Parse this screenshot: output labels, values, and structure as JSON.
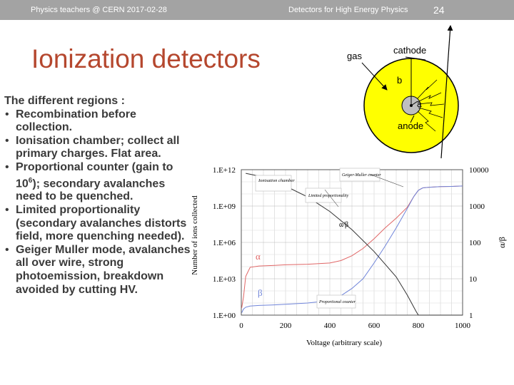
{
  "header": {
    "left": "Physics teachers @ CERN 2017-02-28",
    "center": "Detectors for High Energy Physics",
    "page_number": "24"
  },
  "title": "Ionization detectors",
  "body": {
    "intro": "The different regions :",
    "bullets": [
      {
        "pre": "Recombination before collection.",
        "sup": "",
        "post": ""
      },
      {
        "pre": "Ionisation chamber; collect all primary charges. Flat area.",
        "sup": "",
        "post": ""
      },
      {
        "pre": "Proportional counter (gain to 10",
        "sup": "6",
        "post": "); secondary avalanches need to be quenched."
      },
      {
        "pre": "Limited proportionality (secondary avalanches distorts field, more quenching needed).",
        "sup": "",
        "post": ""
      },
      {
        "pre": "Geiger Muller mode, avalanches all over wire, strong photoemission, breakdown avoided by cutting HV.",
        "sup": "",
        "post": ""
      }
    ]
  },
  "diagram": {
    "labels": {
      "gas": "gas",
      "cathode": "cathode",
      "b": "b",
      "a": "a",
      "anode": "anode"
    },
    "colors": {
      "disk": "#ffff00",
      "wire": "#bfbfbf"
    }
  },
  "chart_data": {
    "type": "line",
    "xlabel": "Voltage (arbitrary scale)",
    "ylabel": "Number of ions collected",
    "y2label": "α/β",
    "xlim": [
      0,
      1000
    ],
    "x_ticks": [
      "0",
      "200",
      "400",
      "600",
      "800",
      "1000"
    ],
    "y_ticks": [
      "1.E+00",
      "1.E+03",
      "1.E+06",
      "1.E+09",
      "1.E+12"
    ],
    "y2_ticks": [
      "1",
      "10",
      "100",
      "1000",
      "10000"
    ],
    "ylim_log10": [
      0,
      12
    ],
    "y2lim_log10": [
      0,
      4
    ],
    "annotations": [
      "Ionisation chamber",
      "Limited proportionality",
      "Geiger-Muller counter",
      "Proportional counter"
    ],
    "series": [
      {
        "name": "α",
        "color": "#e06666",
        "axis": "left",
        "x": [
          2,
          10,
          20,
          40,
          80,
          150,
          200,
          300,
          400,
          450,
          500,
          550,
          600,
          650,
          700,
          750,
          780,
          800,
          820,
          850,
          900,
          950,
          1000
        ],
        "log10_y": [
          0.6,
          1.5,
          3.2,
          3.95,
          4.05,
          4.1,
          4.15,
          4.2,
          4.3,
          4.5,
          4.9,
          5.5,
          6.3,
          7.2,
          8.0,
          8.9,
          9.8,
          10.3,
          10.5,
          10.55,
          10.6,
          10.62,
          10.65
        ]
      },
      {
        "name": "β",
        "color": "#6f84d9",
        "axis": "left",
        "x": [
          2,
          10,
          20,
          40,
          80,
          150,
          200,
          300,
          400,
          450,
          500,
          550,
          600,
          650,
          700,
          750,
          780,
          800,
          820,
          850,
          900,
          950,
          1000
        ],
        "log10_y": [
          0.2,
          0.5,
          0.65,
          0.75,
          0.8,
          0.85,
          0.9,
          1.0,
          1.2,
          1.6,
          2.2,
          3.0,
          4.3,
          5.7,
          7.2,
          8.8,
          9.8,
          10.3,
          10.5,
          10.55,
          10.6,
          10.62,
          10.65
        ]
      },
      {
        "name": "α/β",
        "color": "#333333",
        "axis": "right",
        "x": [
          20,
          100,
          200,
          300,
          400,
          500,
          600,
          650,
          700,
          750,
          790,
          800,
          850,
          900,
          1000
        ],
        "log10_y": [
          3.9,
          3.8,
          3.55,
          3.25,
          2.85,
          2.35,
          1.75,
          1.4,
          1.05,
          0.55,
          0.1,
          0,
          0,
          0,
          0
        ]
      }
    ],
    "series_labels": [
      "α",
      "β",
      "α/β"
    ]
  }
}
